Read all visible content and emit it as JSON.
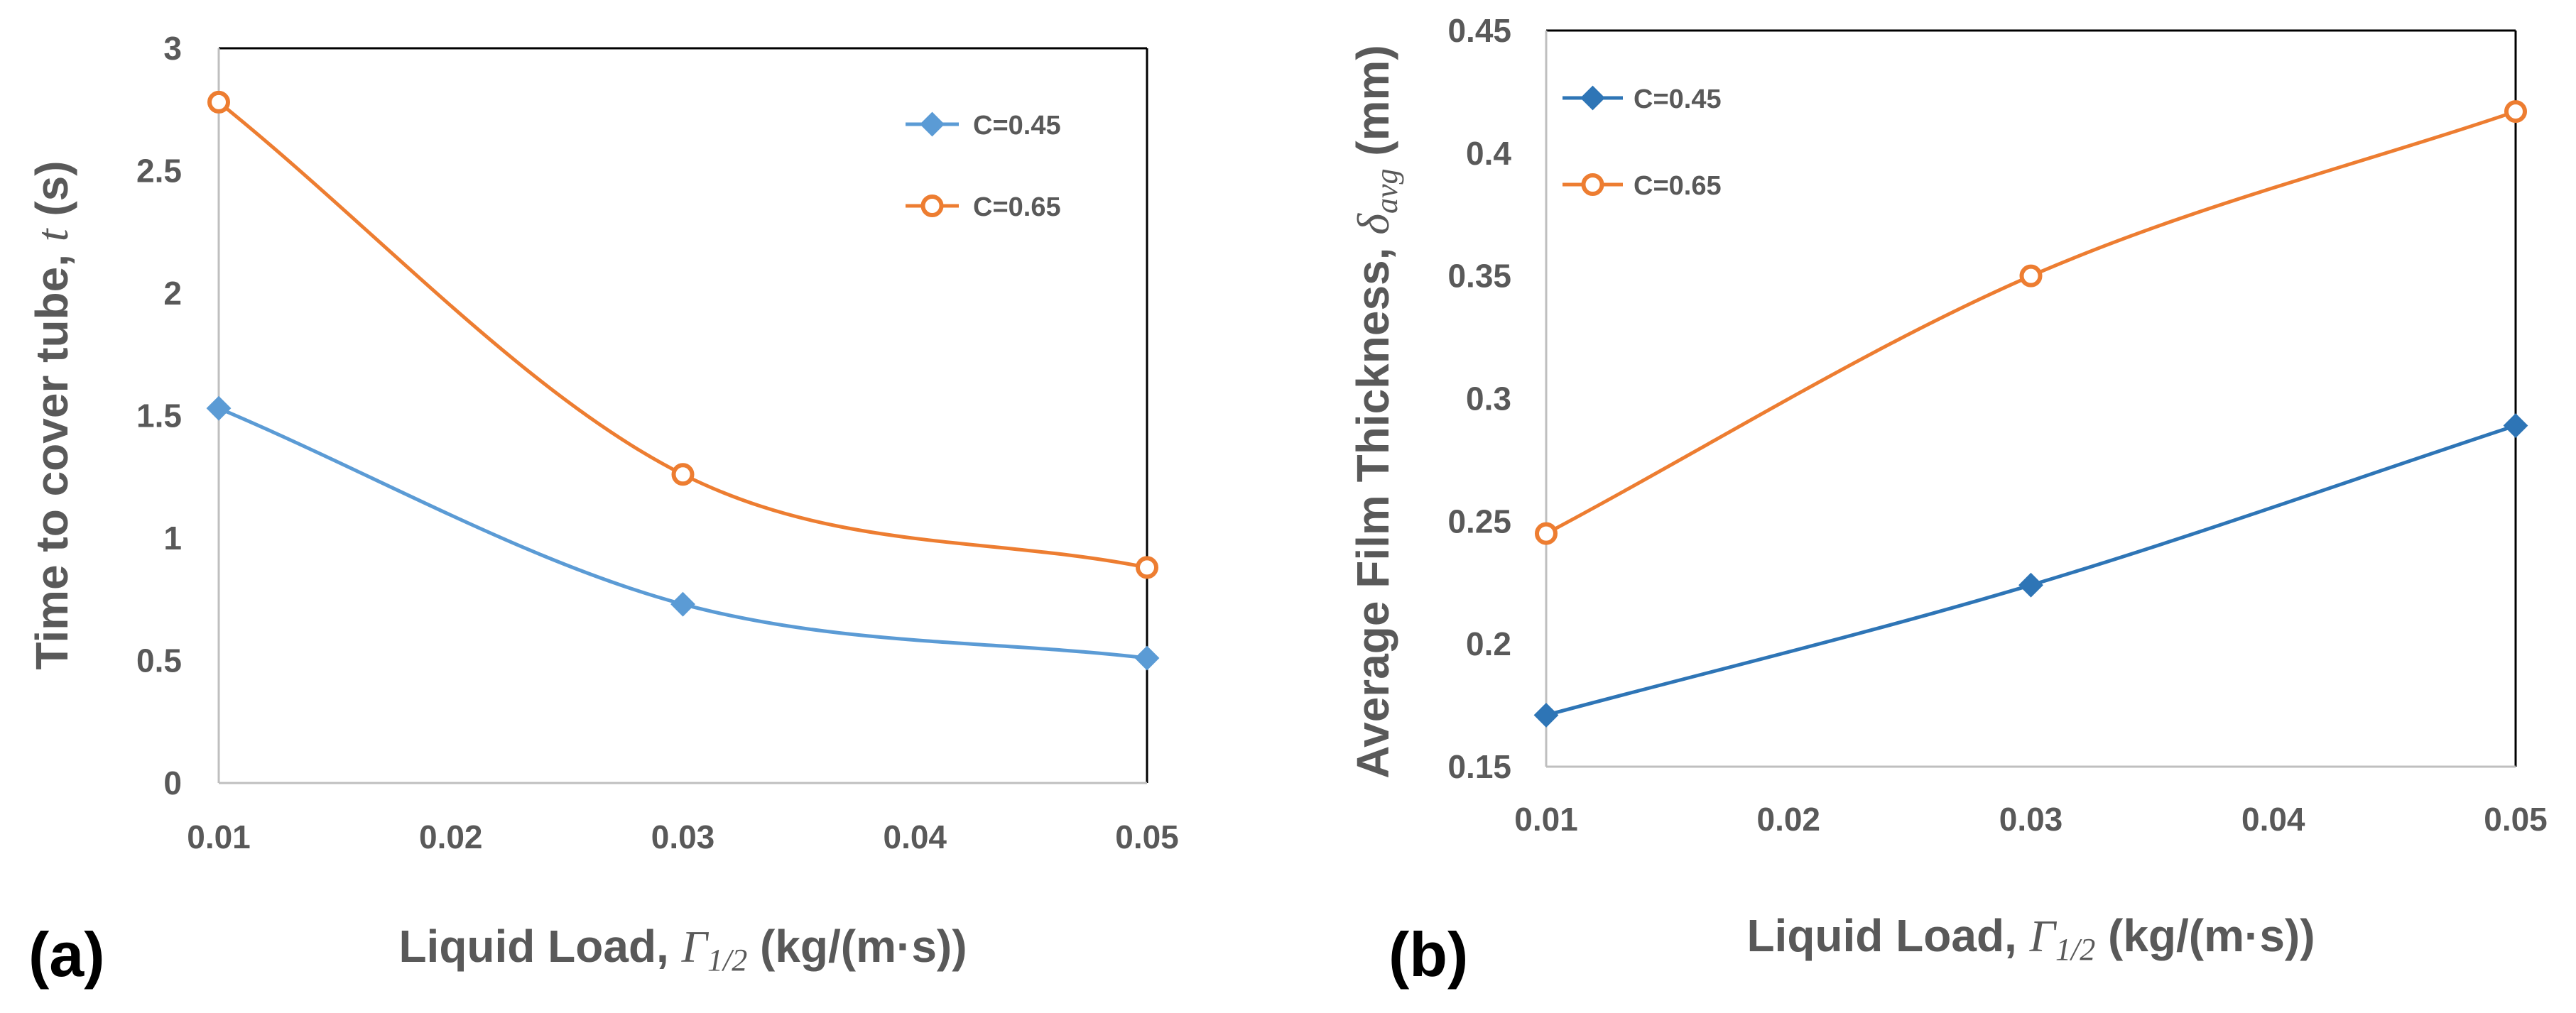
{
  "chart_data": [
    {
      "type": "line",
      "panel_label": "(a)",
      "x": [
        0.01,
        0.03,
        0.05
      ],
      "xlim": [
        0.01,
        0.05
      ],
      "xticks": [
        "0.01",
        "0.02",
        "0.03",
        "0.04",
        "0.05"
      ],
      "ylim": [
        0,
        3
      ],
      "yticks": [
        "0",
        "0.5",
        "1",
        "1.5",
        "2",
        "2.5",
        "3"
      ],
      "xlabel": {
        "prefix": "Liquid Load, ",
        "symbol": "Γ",
        "subscript": "1/2",
        "suffix": " (kg/(m·s))"
      },
      "ylabel": {
        "prefix": "Time to cover tube, ",
        "symbol": "t",
        "subscript": "",
        "suffix": " (s)"
      },
      "legend_position": "top-right",
      "series": [
        {
          "name": "C=0.45",
          "marker": "diamond",
          "color": "#5B9BD5",
          "values": [
            1.53,
            0.73,
            0.51
          ]
        },
        {
          "name": "C=0.65",
          "marker": "circle-open",
          "color": "#ED7D31",
          "values": [
            2.78,
            1.26,
            0.88
          ]
        }
      ]
    },
    {
      "type": "line",
      "panel_label": "(b)",
      "x": [
        0.01,
        0.03,
        0.05
      ],
      "xlim": [
        0.01,
        0.05
      ],
      "xticks": [
        "0.01",
        "0.02",
        "0.03",
        "0.04",
        "0.05"
      ],
      "ylim": [
        0.15,
        0.45
      ],
      "yticks": [
        "0.15",
        "0.2",
        "0.25",
        "0.3",
        "0.35",
        "0.4",
        "0.45"
      ],
      "xlabel": {
        "prefix": "Liquid Load, ",
        "symbol": "Γ",
        "subscript": "1/2",
        "suffix": " (kg/(m·s))"
      },
      "ylabel": {
        "prefix": "Average Film Thickness, ",
        "symbol": "δ",
        "subscript": "avg",
        "suffix": " (mm)"
      },
      "legend_position": "top-left",
      "series": [
        {
          "name": "C=0.45",
          "marker": "diamond",
          "color": "#2E75B6",
          "values": [
            0.171,
            0.224,
            0.289
          ]
        },
        {
          "name": "C=0.65",
          "marker": "circle-open",
          "color": "#ED7D31",
          "values": [
            0.245,
            0.35,
            0.417
          ]
        }
      ]
    }
  ]
}
